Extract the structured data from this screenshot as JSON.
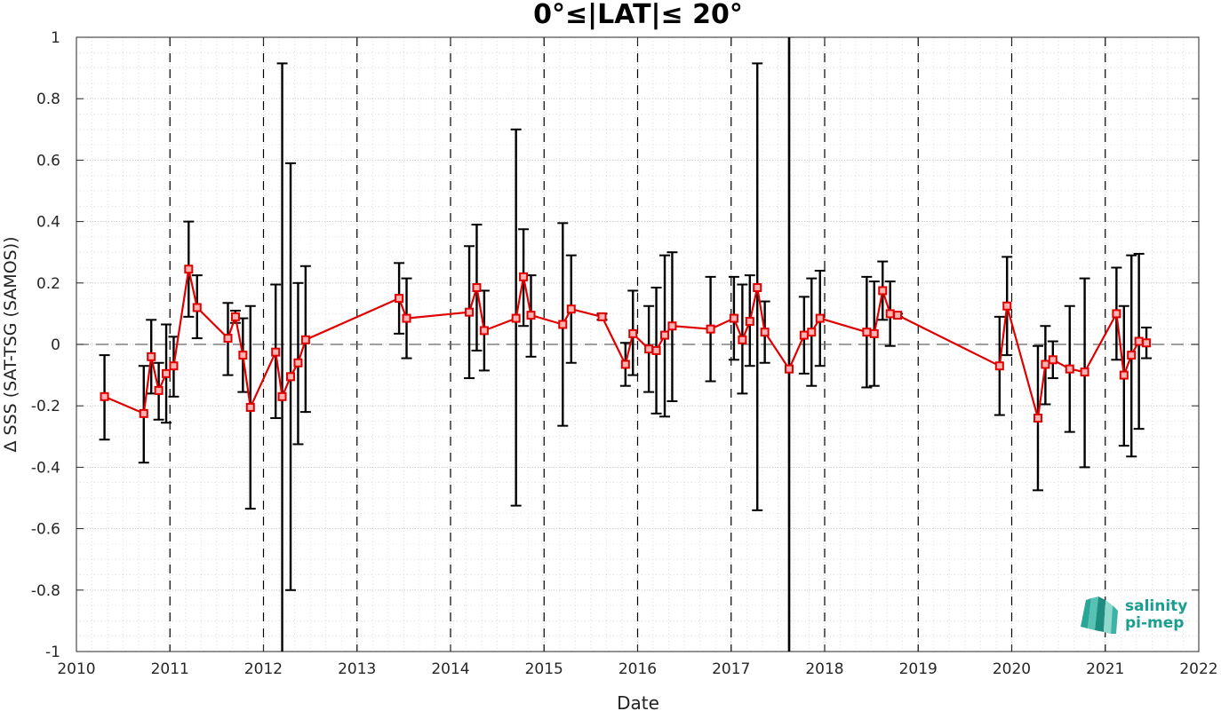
{
  "chart_data": {
    "type": "line",
    "title": "0°≤|LAT|≤ 20°",
    "xlabel": "Date",
    "ylabel": "Δ SSS (SAT-TSG (SAMOS))",
    "xlim": [
      2010,
      2022
    ],
    "ylim": [
      -1,
      1
    ],
    "x_ticks": [
      "2010",
      "2011",
      "2012",
      "2013",
      "2014",
      "2015",
      "2016",
      "2017",
      "2018",
      "2019",
      "2020",
      "2021",
      "2022"
    ],
    "y_ticks": [
      "-1",
      "-0.8",
      "-0.6",
      "-0.4",
      "-0.2",
      "0",
      "0.2",
      "0.4",
      "0.6",
      "0.8",
      "1"
    ],
    "grid": true,
    "reference_line": 0,
    "year_boundaries": [
      2011,
      2012,
      2013,
      2014,
      2015,
      2016,
      2017,
      2018,
      2019,
      2020,
      2021
    ],
    "event_line": 2017.62,
    "series": [
      {
        "color": "#e00000",
        "marker": "square",
        "error_bar_color": "#000000",
        "points": [
          {
            "x": 2010.3,
            "y": -0.17,
            "lo": -0.31,
            "hi": -0.035
          },
          {
            "x": 2010.72,
            "y": -0.225,
            "lo": -0.385,
            "hi": -0.07
          },
          {
            "x": 2010.8,
            "y": -0.04,
            "lo": -0.16,
            "hi": 0.08
          },
          {
            "x": 2010.88,
            "y": -0.15,
            "lo": -0.245,
            "hi": -0.06
          },
          {
            "x": 2010.96,
            "y": -0.095,
            "lo": -0.255,
            "hi": 0.065
          },
          {
            "x": 2011.04,
            "y": -0.07,
            "lo": -0.17,
            "hi": 0.025
          },
          {
            "x": 2011.2,
            "y": 0.245,
            "lo": 0.09,
            "hi": 0.4
          },
          {
            "x": 2011.29,
            "y": 0.12,
            "lo": 0.02,
            "hi": 0.225
          },
          {
            "x": 2011.62,
            "y": 0.02,
            "lo": -0.1,
            "hi": 0.135
          },
          {
            "x": 2011.7,
            "y": 0.09,
            "lo": 0.07,
            "hi": 0.11
          },
          {
            "x": 2011.78,
            "y": -0.035,
            "lo": -0.155,
            "hi": 0.085
          },
          {
            "x": 2011.86,
            "y": -0.205,
            "lo": -0.535,
            "hi": 0.125
          },
          {
            "x": 2012.13,
            "y": -0.025,
            "lo": -0.24,
            "hi": 0.195
          },
          {
            "x": 2012.2,
            "y": -0.17,
            "lo": -1.0,
            "hi": 0.915
          },
          {
            "x": 2012.29,
            "y": -0.105,
            "lo": -0.8,
            "hi": 0.59
          },
          {
            "x": 2012.37,
            "y": -0.06,
            "lo": -0.325,
            "hi": 0.2
          },
          {
            "x": 2012.45,
            "y": 0.015,
            "lo": -0.22,
            "hi": 0.255
          },
          {
            "x": 2013.45,
            "y": 0.15,
            "lo": 0.035,
            "hi": 0.265
          },
          {
            "x": 2013.53,
            "y": 0.085,
            "lo": -0.045,
            "hi": 0.215
          },
          {
            "x": 2014.2,
            "y": 0.105,
            "lo": -0.11,
            "hi": 0.32
          },
          {
            "x": 2014.28,
            "y": 0.185,
            "lo": -0.02,
            "hi": 0.39
          },
          {
            "x": 2014.36,
            "y": 0.045,
            "lo": -0.085,
            "hi": 0.175
          },
          {
            "x": 2014.7,
            "y": 0.085,
            "lo": -0.525,
            "hi": 0.7
          },
          {
            "x": 2014.78,
            "y": 0.22,
            "lo": 0.06,
            "hi": 0.375
          },
          {
            "x": 2014.86,
            "y": 0.095,
            "lo": -0.04,
            "hi": 0.225
          },
          {
            "x": 2015.2,
            "y": 0.065,
            "lo": -0.265,
            "hi": 0.395
          },
          {
            "x": 2015.29,
            "y": 0.115,
            "lo": -0.06,
            "hi": 0.29
          },
          {
            "x": 2015.62,
            "y": 0.09,
            "lo": 0.08,
            "hi": 0.1
          },
          {
            "x": 2015.87,
            "y": -0.065,
            "lo": -0.135,
            "hi": 0.005
          },
          {
            "x": 2015.95,
            "y": 0.035,
            "lo": -0.1,
            "hi": 0.175
          },
          {
            "x": 2016.12,
            "y": -0.015,
            "lo": -0.155,
            "hi": 0.125
          },
          {
            "x": 2016.2,
            "y": -0.02,
            "lo": -0.225,
            "hi": 0.185
          },
          {
            "x": 2016.29,
            "y": 0.03,
            "lo": -0.235,
            "hi": 0.29
          },
          {
            "x": 2016.37,
            "y": 0.06,
            "lo": -0.185,
            "hi": 0.3
          },
          {
            "x": 2016.78,
            "y": 0.05,
            "lo": -0.12,
            "hi": 0.22
          },
          {
            "x": 2017.03,
            "y": 0.085,
            "lo": -0.05,
            "hi": 0.22
          },
          {
            "x": 2017.12,
            "y": 0.015,
            "lo": -0.16,
            "hi": 0.195
          },
          {
            "x": 2017.2,
            "y": 0.075,
            "lo": -0.07,
            "hi": 0.225
          },
          {
            "x": 2017.28,
            "y": 0.185,
            "lo": -0.54,
            "hi": 0.915
          },
          {
            "x": 2017.36,
            "y": 0.04,
            "lo": -0.06,
            "hi": 0.14
          },
          {
            "x": 2017.62,
            "y": -0.08,
            "lo": -1.0,
            "hi": 1.0
          },
          {
            "x": 2017.78,
            "y": 0.03,
            "lo": -0.095,
            "hi": 0.155
          },
          {
            "x": 2017.86,
            "y": 0.04,
            "lo": -0.135,
            "hi": 0.215
          },
          {
            "x": 2017.95,
            "y": 0.085,
            "lo": -0.07,
            "hi": 0.24
          },
          {
            "x": 2018.45,
            "y": 0.04,
            "lo": -0.14,
            "hi": 0.22
          },
          {
            "x": 2018.53,
            "y": 0.035,
            "lo": -0.135,
            "hi": 0.205
          },
          {
            "x": 2018.62,
            "y": 0.175,
            "lo": 0.08,
            "hi": 0.27
          },
          {
            "x": 2018.7,
            "y": 0.1,
            "lo": -0.005,
            "hi": 0.205
          },
          {
            "x": 2018.78,
            "y": 0.095,
            "lo": 0.09,
            "hi": 0.1
          },
          {
            "x": 2019.87,
            "y": -0.07,
            "lo": -0.23,
            "hi": 0.09
          },
          {
            "x": 2019.95,
            "y": 0.125,
            "lo": -0.035,
            "hi": 0.285
          },
          {
            "x": 2020.28,
            "y": -0.24,
            "lo": -0.475,
            "hi": -0.005
          },
          {
            "x": 2020.36,
            "y": -0.065,
            "lo": -0.195,
            "hi": 0.06
          },
          {
            "x": 2020.44,
            "y": -0.05,
            "lo": -0.11,
            "hi": 0.01
          },
          {
            "x": 2020.62,
            "y": -0.08,
            "lo": -0.285,
            "hi": 0.125
          },
          {
            "x": 2020.78,
            "y": -0.09,
            "lo": -0.4,
            "hi": 0.215
          },
          {
            "x": 2021.12,
            "y": 0.1,
            "lo": -0.05,
            "hi": 0.25
          },
          {
            "x": 2021.2,
            "y": -0.1,
            "lo": -0.33,
            "hi": 0.125
          },
          {
            "x": 2021.28,
            "y": -0.035,
            "lo": -0.365,
            "hi": 0.29
          },
          {
            "x": 2021.36,
            "y": 0.01,
            "lo": -0.275,
            "hi": 0.295
          },
          {
            "x": 2021.44,
            "y": 0.005,
            "lo": -0.045,
            "hi": 0.055
          }
        ]
      }
    ]
  },
  "logo": {
    "line1": "salinity",
    "line2": "pi-mep",
    "color": "#1a9e8f"
  }
}
